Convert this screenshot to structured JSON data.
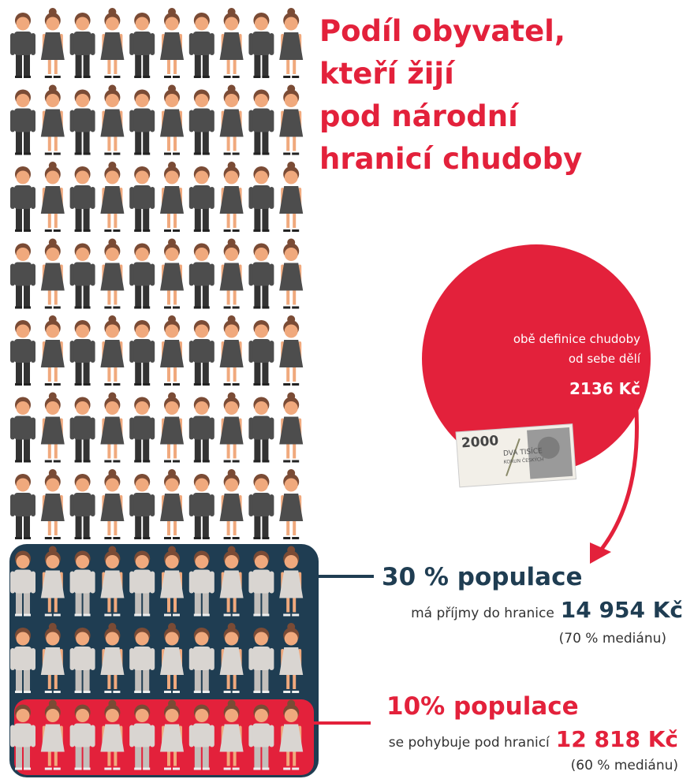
{
  "title": [
    "Podíl obyvatel,",
    "kteří žijí",
    "pod národní",
    "hranicí chudoby"
  ],
  "circle": {
    "lines": [
      "obě definice chudoby",
      "od sebe dělí"
    ],
    "amount": "2136 Kč",
    "banknote": {
      "value": "2000",
      "words": [
        "DVA TISÍCE",
        "KORUN ČESKÝCH"
      ]
    }
  },
  "groups": [
    {
      "headline": "30 % populace",
      "text": "má příjmy do hranice",
      "amount": "14 954 Kč",
      "note": "(70 % mediánu)"
    },
    {
      "headline": "10% populace",
      "text": "se pohybuje pod hranicí",
      "amount": "12 818 Kč",
      "note": "(60 % mediánu)"
    }
  ]
}
